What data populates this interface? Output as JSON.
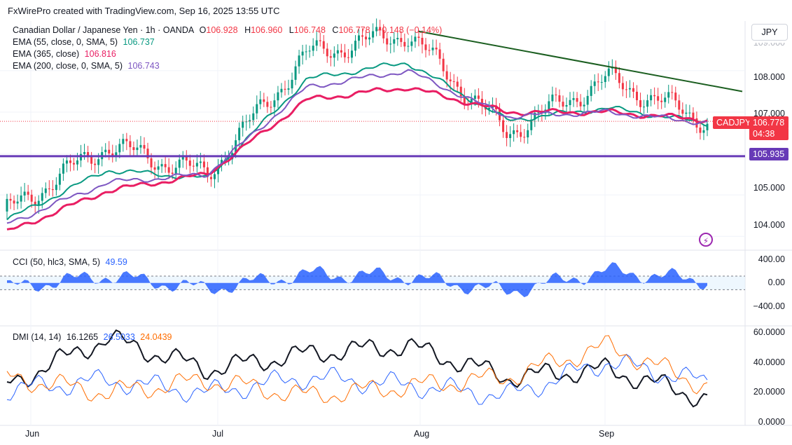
{
  "header": {
    "created_line": "FxWirePro created with TradingView.com, Sep 16, 2025 13:55 UTC",
    "symbol_line": "Canadian Dollar / Japanese Yen · 1h · OANDA",
    "ohlc": {
      "o_label": "O",
      "o": "106.928",
      "h_label": "H",
      "h": "106.960",
      "l_label": "L",
      "l": "106.748",
      "c_label": "C",
      "c": "106.778",
      "change": "−0.148 (−0.14%)"
    },
    "currency_button": "JPY"
  },
  "indicators": {
    "ema55": {
      "label": "EMA (55, close, 0, SMA, 5)",
      "value": "106.737",
      "color": "#089981"
    },
    "ema365": {
      "label": "EMA (365, close)",
      "value": "106.816",
      "color": "#e91e63"
    },
    "ema200": {
      "label": "EMA (200, close, 0, SMA, 5)",
      "value": "106.743",
      "color": "#7e57c2"
    },
    "cci": {
      "label": "CCI (50, hlc3, SMA, 5)",
      "value": "49.59",
      "color": "#2962ff"
    },
    "dmi": {
      "label": "DMI (14, 14)",
      "adx": "16.1265",
      "plus_di": "26.5033",
      "minus_di": "24.0439",
      "colors": {
        "adx": "#131722",
        "plus": "#2962ff",
        "minus": "#ff6d00"
      }
    }
  },
  "price_axis": {
    "ticks": [
      "108.000",
      "107.000",
      "105.000",
      "104.000"
    ],
    "partial_top": "109.000"
  },
  "price_tags": {
    "symbol": "CADJPY",
    "last": "106.778",
    "countdown": "04:38",
    "support": "105.935",
    "last_color": "#f23645",
    "support_color": "#673ab7"
  },
  "cci_axis": {
    "ticks": [
      "400.00",
      "0.00",
      "−400.00"
    ]
  },
  "dmi_axis": {
    "ticks": [
      "60.0000",
      "40.0000",
      "20.0000",
      "0.0000"
    ]
  },
  "time_axis": {
    "labels": [
      "Jun",
      "Jul",
      "Aug",
      "Sep"
    ]
  },
  "chart_data": [
    {
      "type": "line",
      "title": "Canadian Dollar / Japanese Yen · 1h · OANDA",
      "x": [
        "Jun 1",
        "Jun 15",
        "Jul 1",
        "Jul 15",
        "Aug 1",
        "Aug 15",
        "Sep 1",
        "Sep 16"
      ],
      "ylim": [
        103.7,
        109.2
      ],
      "series": [
        {
          "name": "CADJPY",
          "values": [
            104.6,
            106.2,
            105.5,
            108.4,
            108.9,
            106.5,
            107.8,
            106.778
          ]
        },
        {
          "name": "EMA (55, close, 0, SMA, 5)",
          "values": [
            104.4,
            105.6,
            105.4,
            107.8,
            108.2,
            106.8,
            107.1,
            106.737
          ]
        },
        {
          "name": "EMA (365, close)",
          "values": [
            104.1,
            105.1,
            105.5,
            107.3,
            107.6,
            107.0,
            107.0,
            106.816
          ]
        },
        {
          "name": "EMA (200, close, 0, SMA, 5)",
          "values": [
            104.3,
            105.3,
            105.5,
            107.6,
            108.0,
            106.9,
            107.0,
            106.743
          ]
        }
      ],
      "support_level": 105.935,
      "trendline": {
        "from": {
          "x": "Aug 1",
          "y": 108.95
        },
        "to": {
          "x": "Sep 16",
          "y": 107.5
        }
      },
      "grid": true
    },
    {
      "type": "bar",
      "title": "CCI (50, hlc3, SMA, 5)",
      "x": [
        "Jun 1",
        "Jun 15",
        "Jul 1",
        "Jul 15",
        "Aug 1",
        "Aug 15",
        "Sep 1",
        "Sep 16"
      ],
      "values": [
        -120,
        180,
        -150,
        220,
        160,
        -220,
        300,
        49.59
      ],
      "ylim": [
        -600,
        450
      ]
    },
    {
      "type": "line",
      "title": "DMI (14, 14)",
      "x": [
        "Jun 1",
        "Jun 15",
        "Jul 1",
        "Jul 15",
        "Aug 1",
        "Aug 15",
        "Sep 1",
        "Sep 16"
      ],
      "ylim": [
        0,
        62
      ],
      "series": [
        {
          "name": "ADX",
          "values": [
            25,
            55,
            35,
            45,
            50,
            30,
            35,
            16.1265
          ]
        },
        {
          "name": "+DI",
          "values": [
            22,
            28,
            20,
            30,
            25,
            18,
            40,
            26.5033
          ]
        },
        {
          "name": "−DI",
          "values": [
            30,
            20,
            28,
            18,
            24,
            30,
            50,
            24.0439
          ]
        }
      ]
    }
  ]
}
